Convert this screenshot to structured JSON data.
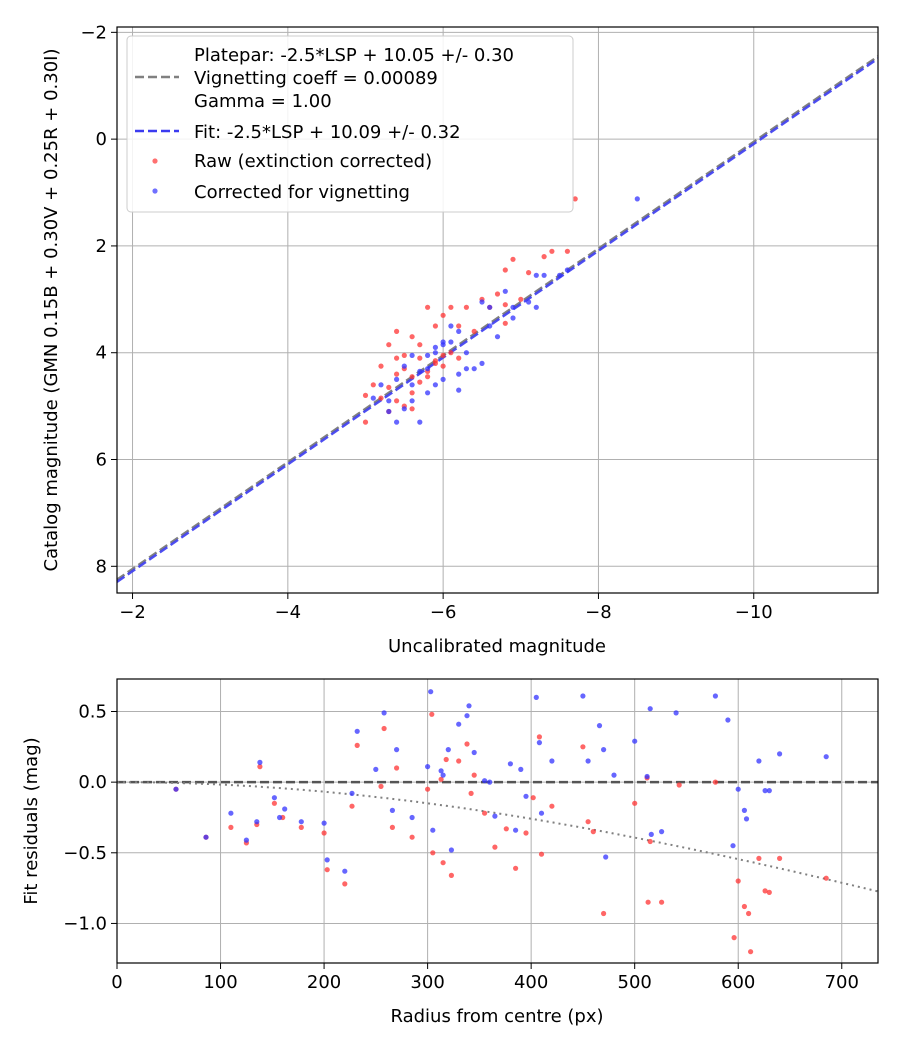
{
  "chart_data": [
    {
      "type": "scatter",
      "xlabel": "Uncalibrated magnitude",
      "ylabel": "Catalog magnitude (GMN 0.15B + 0.30V + 0.25R + 0.30I)",
      "xlim": [
        -1.8,
        -11.6
      ],
      "ylim": [
        8.5,
        -2.1
      ],
      "x_inverted": true,
      "y_inverted": true,
      "grid": true,
      "legend_position": "upper-left",
      "xticks": [
        -2,
        -4,
        -6,
        -8,
        -10
      ],
      "yticks": [
        -2,
        0,
        2,
        4,
        6,
        8
      ],
      "xtick_labels": [
        "−2",
        "−4",
        "−6",
        "−8",
        "−10"
      ],
      "ytick_labels": [
        "−2",
        "0",
        "2",
        "4",
        "6",
        "8"
      ],
      "legend": [
        {
          "label": "Platepar: -2.5*LSP + 10.05 +/- 0.30\nVignetting coeff = 0.00089\nGamma = 1.00",
          "kind": "line",
          "color": "#808080"
        },
        {
          "label": "Fit: -2.5*LSP + 10.09 +/- 0.32",
          "kind": "line",
          "color": "#3b3bf0"
        },
        {
          "label": "Raw (extinction corrected)",
          "kind": "marker",
          "color": "#ff3333"
        },
        {
          "label": "Corrected for vignetting",
          "kind": "marker",
          "color": "#3333ff"
        }
      ],
      "lines": [
        {
          "name": "Platepar",
          "slope_label": "-2.5*LSP + 10.05",
          "points": [
            [
              -1.8,
              8.25
            ],
            [
              -11.6,
              -1.55
            ]
          ],
          "color": "#808080",
          "style": "dashed"
        },
        {
          "name": "Fit",
          "slope_label": "-2.5*LSP + 10.09",
          "points": [
            [
              -1.8,
              8.29
            ],
            [
              -11.6,
              -1.51
            ]
          ],
          "color": "#3b3bf0",
          "style": "dashed"
        }
      ],
      "series": [
        {
          "name": "Raw (extinction corrected)",
          "color": "#ff3333",
          "points": [
            [
              -7.7,
              1.12
            ],
            [
              -6.9,
              2.25
            ],
            [
              -6.8,
              2.45
            ],
            [
              -7.4,
              2.1
            ],
            [
              -7.6,
              2.1
            ],
            [
              -6.1,
              3.15
            ],
            [
              -6.3,
              3.15
            ],
            [
              -6.5,
              3.0
            ],
            [
              -6.8,
              3.1
            ],
            [
              -7.0,
              3.0
            ],
            [
              -5.8,
              3.15
            ],
            [
              -5.9,
              3.5
            ],
            [
              -6.0,
              3.3
            ],
            [
              -6.2,
              3.5
            ],
            [
              -6.4,
              3.6
            ],
            [
              -6.8,
              3.45
            ],
            [
              -5.4,
              3.6
            ],
            [
              -5.6,
              3.7
            ],
            [
              -5.3,
              3.85
            ],
            [
              -5.5,
              4.05
            ],
            [
              -5.7,
              4.1
            ],
            [
              -5.9,
              4.15
            ],
            [
              -5.2,
              4.25
            ],
            [
              -5.5,
              4.3
            ],
            [
              -5.4,
              4.4
            ],
            [
              -5.6,
              4.45
            ],
            [
              -5.8,
              4.35
            ],
            [
              -6.0,
              4.25
            ],
            [
              -5.1,
              4.6
            ],
            [
              -5.3,
              4.65
            ],
            [
              -5.0,
              4.8
            ],
            [
              -5.2,
              4.85
            ],
            [
              -5.4,
              4.9
            ],
            [
              -5.6,
              4.75
            ],
            [
              -5.8,
              4.45
            ],
            [
              -6.0,
              4.05
            ],
            [
              -6.1,
              4.0
            ],
            [
              -5.7,
              4.55
            ],
            [
              -5.5,
              5.0
            ],
            [
              -5.0,
              5.3
            ],
            [
              -5.9,
              4.2
            ],
            [
              -5.6,
              5.05
            ],
            [
              -5.3,
              5.1
            ],
            [
              -6.2,
              4.1
            ],
            [
              -5.7,
              3.85
            ],
            [
              -5.4,
              4.1
            ],
            [
              -6.6,
              3.15
            ],
            [
              -6.7,
              2.9
            ],
            [
              -7.1,
              2.5
            ],
            [
              -7.3,
              2.2
            ]
          ]
        },
        {
          "name": "Corrected for vignetting",
          "color": "#3333ff",
          "points": [
            [
              -8.5,
              1.12
            ],
            [
              -7.6,
              2.45
            ],
            [
              -7.5,
              2.55
            ],
            [
              -7.2,
              2.55
            ],
            [
              -7.1,
              3.05
            ],
            [
              -7.2,
              3.15
            ],
            [
              -6.9,
              3.15
            ],
            [
              -6.6,
              3.15
            ],
            [
              -6.5,
              3.05
            ],
            [
              -6.8,
              2.85
            ],
            [
              -6.9,
              3.35
            ],
            [
              -6.1,
              3.5
            ],
            [
              -6.2,
              3.6
            ],
            [
              -6.0,
              3.8
            ],
            [
              -5.9,
              3.9
            ],
            [
              -6.3,
              4.0
            ],
            [
              -6.5,
              4.2
            ],
            [
              -6.4,
              4.3
            ],
            [
              -6.2,
              4.4
            ],
            [
              -6.0,
              4.5
            ],
            [
              -5.8,
              4.3
            ],
            [
              -5.7,
              4.35
            ],
            [
              -5.6,
              4.05
            ],
            [
              -5.8,
              4.05
            ],
            [
              -5.4,
              4.5
            ],
            [
              -5.6,
              4.6
            ],
            [
              -5.2,
              4.6
            ],
            [
              -5.1,
              4.85
            ],
            [
              -5.3,
              4.9
            ],
            [
              -5.6,
              4.9
            ],
            [
              -5.8,
              4.75
            ],
            [
              -5.5,
              5.05
            ],
            [
              -5.3,
              5.1
            ],
            [
              -5.7,
              5.3
            ],
            [
              -5.4,
              5.3
            ],
            [
              -6.0,
              3.85
            ],
            [
              -6.1,
              3.8
            ],
            [
              -5.9,
              4.6
            ],
            [
              -6.2,
              4.7
            ],
            [
              -6.3,
              4.3
            ],
            [
              -5.9,
              4.0
            ],
            [
              -5.5,
              4.25
            ],
            [
              -6.6,
              3.5
            ],
            [
              -6.7,
              3.7
            ],
            [
              -7.3,
              2.55
            ]
          ]
        }
      ]
    },
    {
      "type": "scatter",
      "xlabel": "Radius from centre (px)",
      "ylabel": "Fit residuals (mag)",
      "xlim": [
        0,
        735
      ],
      "ylim": [
        -1.28,
        0.73
      ],
      "grid": true,
      "xticks": [
        0,
        100,
        200,
        300,
        400,
        500,
        600,
        700
      ],
      "yticks": [
        0.5,
        0.0,
        -0.5,
        -1.0
      ],
      "xtick_labels": [
        "0",
        "100",
        "200",
        "300",
        "400",
        "500",
        "600",
        "700"
      ],
      "ytick_labels": [
        "0.5",
        "0.0",
        "−0.5",
        "−1.0"
      ],
      "lines": [
        {
          "name": "zero",
          "points": [
            [
              0,
              0
            ],
            [
              735,
              0
            ]
          ],
          "color": "#555555",
          "style": "dashed"
        },
        {
          "name": "vignetting",
          "vignetting_coeff": 0.00089,
          "color": "#808080",
          "style": "dotted"
        }
      ],
      "series": [
        {
          "name": "Raw (extinction corrected)",
          "color": "#ff3333",
          "points": [
            [
              57,
              -0.05
            ],
            [
              86,
              -0.39
            ],
            [
              110,
              -0.32
            ],
            [
              125,
              -0.43
            ],
            [
              135,
              -0.3
            ],
            [
              138,
              0.11
            ],
            [
              152,
              -0.15
            ],
            [
              160,
              -0.25
            ],
            [
              178,
              -0.32
            ],
            [
              200,
              -0.36
            ],
            [
              203,
              -0.62
            ],
            [
              220,
              -0.72
            ],
            [
              227,
              -0.17
            ],
            [
              232,
              0.26
            ],
            [
              255,
              -0.03
            ],
            [
              258,
              0.38
            ],
            [
              266,
              -0.32
            ],
            [
              270,
              0.1
            ],
            [
              285,
              -0.39
            ],
            [
              300,
              -0.05
            ],
            [
              304,
              0.48
            ],
            [
              305,
              -0.5
            ],
            [
              313,
              0.02
            ],
            [
              315,
              -0.57
            ],
            [
              318,
              0.16
            ],
            [
              323,
              -0.66
            ],
            [
              330,
              0.15
            ],
            [
              338,
              0.27
            ],
            [
              342,
              -0.08
            ],
            [
              345,
              0.05
            ],
            [
              355,
              -0.22
            ],
            [
              365,
              -0.46
            ],
            [
              376,
              -0.33
            ],
            [
              385,
              -0.61
            ],
            [
              395,
              -0.36
            ],
            [
              402,
              -0.11
            ],
            [
              408,
              0.32
            ],
            [
              410,
              -0.51
            ],
            [
              420,
              -0.17
            ],
            [
              450,
              0.25
            ],
            [
              455,
              -0.28
            ],
            [
              460,
              -0.35
            ],
            [
              470,
              -0.93
            ],
            [
              500,
              -0.15
            ],
            [
              512,
              0.03
            ],
            [
              513,
              -0.85
            ],
            [
              515,
              -0.42
            ],
            [
              526,
              -0.85
            ],
            [
              543,
              -0.02
            ],
            [
              578,
              0.0
            ],
            [
              596,
              -1.1
            ],
            [
              600,
              -0.7
            ],
            [
              606,
              -0.88
            ],
            [
              610,
              -0.93
            ],
            [
              612,
              -1.2
            ],
            [
              620,
              -0.54
            ],
            [
              626,
              -0.77
            ],
            [
              630,
              -0.78
            ],
            [
              640,
              -0.54
            ],
            [
              685,
              -0.68
            ]
          ]
        },
        {
          "name": "Corrected for vignetting",
          "color": "#3333ff",
          "points": [
            [
              57,
              -0.05
            ],
            [
              86,
              -0.39
            ],
            [
              110,
              -0.22
            ],
            [
              125,
              -0.41
            ],
            [
              135,
              -0.28
            ],
            [
              138,
              0.14
            ],
            [
              152,
              -0.11
            ],
            [
              157,
              -0.25
            ],
            [
              162,
              -0.19
            ],
            [
              178,
              -0.28
            ],
            [
              200,
              -0.29
            ],
            [
              203,
              -0.55
            ],
            [
              220,
              -0.63
            ],
            [
              227,
              -0.08
            ],
            [
              232,
              0.36
            ],
            [
              250,
              0.09
            ],
            [
              258,
              0.49
            ],
            [
              266,
              -0.2
            ],
            [
              270,
              0.23
            ],
            [
              285,
              -0.25
            ],
            [
              300,
              0.11
            ],
            [
              303,
              0.64
            ],
            [
              305,
              -0.34
            ],
            [
              313,
              0.08
            ],
            [
              315,
              0.05
            ],
            [
              320,
              0.23
            ],
            [
              323,
              -0.48
            ],
            [
              330,
              0.41
            ],
            [
              338,
              0.47
            ],
            [
              340,
              0.54
            ],
            [
              345,
              0.21
            ],
            [
              355,
              0.01
            ],
            [
              360,
              0.0
            ],
            [
              365,
              -0.24
            ],
            [
              380,
              0.13
            ],
            [
              385,
              -0.34
            ],
            [
              390,
              0.09
            ],
            [
              395,
              -0.1
            ],
            [
              405,
              0.6
            ],
            [
              408,
              0.28
            ],
            [
              410,
              -0.22
            ],
            [
              420,
              0.15
            ],
            [
              450,
              0.61
            ],
            [
              455,
              0.15
            ],
            [
              466,
              0.4
            ],
            [
              470,
              0.23
            ],
            [
              472,
              -0.53
            ],
            [
              480,
              0.05
            ],
            [
              500,
              0.29
            ],
            [
              512,
              0.04
            ],
            [
              515,
              0.52
            ],
            [
              516,
              -0.37
            ],
            [
              526,
              -0.35
            ],
            [
              540,
              0.49
            ],
            [
              578,
              0.61
            ],
            [
              590,
              0.44
            ],
            [
              595,
              -0.45
            ],
            [
              600,
              -0.05
            ],
            [
              606,
              -0.2
            ],
            [
              608,
              -0.26
            ],
            [
              620,
              0.15
            ],
            [
              626,
              -0.06
            ],
            [
              630,
              -0.06
            ],
            [
              640,
              0.2
            ],
            [
              685,
              0.18
            ]
          ]
        }
      ]
    }
  ]
}
